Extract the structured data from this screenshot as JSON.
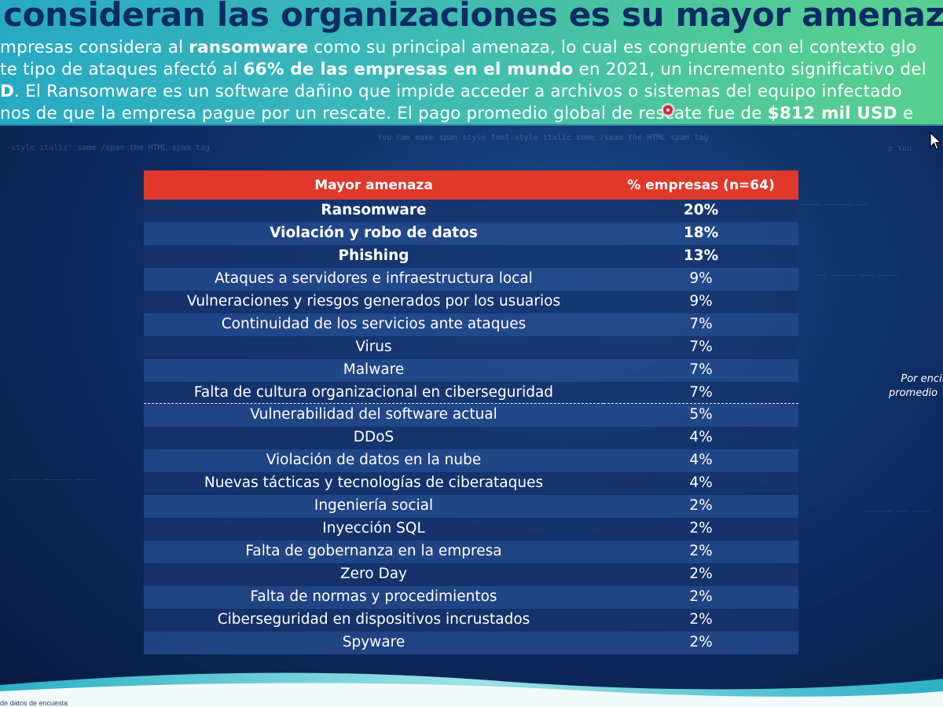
{
  "header": {
    "title": "consideran las organizaciones es su mayor amenaza actua",
    "lines": [
      {
        "pre": "mpresas considera al ",
        "bold1": "ransomware",
        "post": " como su principal amenaza, lo cual es congruente con el contexto glo"
      },
      {
        "pre": "te tipo de ataques afectó al ",
        "bold1": "66% de las empresas en el mundo",
        "post": " en 2021, un incremento significativo del"
      },
      {
        "pre": "",
        "bold1": "D",
        "post": ". El Ransomware es un software dañino que impide acceder a archivos o sistemas del equipo infectado"
      },
      {
        "pre": "nos de que la empresa pague por un rescate. El pago promedio global de rescate fue de ",
        "bold1": "$812 mil USD",
        "post": " e"
      }
    ]
  },
  "table": {
    "headers": [
      "Mayor amenaza",
      "% empresas (n=64)"
    ],
    "rows": [
      {
        "threat": "Ransomware",
        "pct": "20%"
      },
      {
        "threat": "Violación y robo de datos",
        "pct": "18%"
      },
      {
        "threat": "Phishing",
        "pct": "13%"
      },
      {
        "threat": "Ataques a servidores e infraestructura local",
        "pct": "9%"
      },
      {
        "threat": "Vulneraciones y riesgos generados por los usuarios",
        "pct": "9%"
      },
      {
        "threat": "Continuidad de los servicios ante ataques",
        "pct": "7%"
      },
      {
        "threat": "Virus",
        "pct": "7%"
      },
      {
        "threat": "Malware",
        "pct": "7%"
      },
      {
        "threat": "Falta de cultura organizacional en ciberseguridad",
        "pct": "7%"
      },
      {
        "threat": "Vulnerabilidad del software actual",
        "pct": "5%"
      },
      {
        "threat": "DDoS",
        "pct": "4%"
      },
      {
        "threat": "Violación de datos en la nube",
        "pct": "4%"
      },
      {
        "threat": "Nuevas tácticas y tecnologías de ciberataques",
        "pct": "4%"
      },
      {
        "threat": "Ingeniería social",
        "pct": "2%"
      },
      {
        "threat": "Inyección SQL",
        "pct": "2%"
      },
      {
        "threat": "Falta de gobernanza en la empresa",
        "pct": "2%"
      },
      {
        "threat": "Zero Day",
        "pct": "2%"
      },
      {
        "threat": "Falta de normas y procedimientos",
        "pct": "2%"
      },
      {
        "threat": "Ciberseguridad en dispositivos incrustados",
        "pct": "2%"
      },
      {
        "threat": "Spyware",
        "pct": "2%"
      }
    ]
  },
  "side_note": {
    "line1": "Por encima de",
    "line2": "promedio"
  },
  "bottom_note": "de datos de encuesta",
  "colors": {
    "header_gradient_start": "#27a9c4",
    "header_gradient_end": "#58d08f",
    "title": "#0b2d63",
    "table_header": "#e0382b",
    "row_dark": "#16346e",
    "row_light": "#244b8c",
    "background": "#0e2f66"
  },
  "icons": [
    "pointer-dot-icon",
    "mouse-cursor-icon"
  ]
}
